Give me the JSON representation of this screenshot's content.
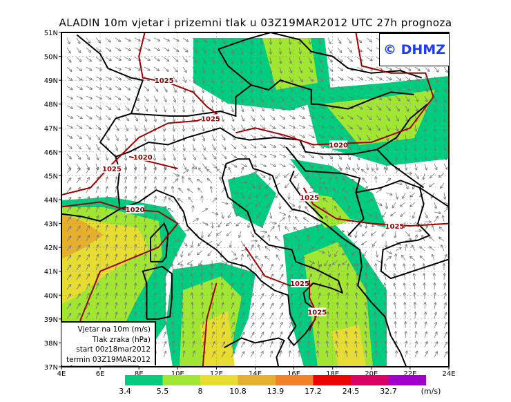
{
  "title": "ALADIN 10m vjetar i prizemni tlak u 03Z19MAR2012 UTC 27h prognoza",
  "copyright": "© DHMZ",
  "info_box": {
    "line1": "Vjetar na 10m (m/s)",
    "line2": "Tlak zraka (hPa)",
    "line3": "start 00z18mar2012",
    "line4": "termin 03Z19MAR2012"
  },
  "axes": {
    "lat_labels": [
      "51N",
      "50N",
      "49N",
      "48N",
      "47N",
      "46N",
      "45N",
      "44N",
      "43N",
      "42N",
      "41N",
      "40N",
      "39N",
      "38N",
      "37N"
    ],
    "lon_labels": [
      "4E",
      "6E",
      "8E",
      "10E",
      "12E",
      "14E",
      "16E",
      "18E",
      "20E",
      "22E",
      "24E"
    ],
    "lat_range": [
      37,
      51
    ],
    "lon_range": [
      4,
      24
    ]
  },
  "legend": {
    "unit": "(m/s)",
    "thresholds": [
      "3.4",
      "5.5",
      "8",
      "10.8",
      "13.9",
      "17.2",
      "24.5",
      "32.7"
    ],
    "colors": [
      "#00cc80",
      "#a0e632",
      "#e6dc32",
      "#e6af2d",
      "#f08228",
      "#f00000",
      "#dc0064",
      "#a000c8"
    ]
  },
  "isobars": [
    {
      "label": "1025",
      "lon": 9.3,
      "lat": 49.0
    },
    {
      "label": "1025",
      "lon": 11.7,
      "lat": 47.4
    },
    {
      "label": "1025",
      "lon": 6.6,
      "lat": 45.3
    },
    {
      "label": "1020",
      "lon": 8.2,
      "lat": 45.8
    },
    {
      "label": "1020",
      "lon": 7.8,
      "lat": 43.6
    },
    {
      "label": "1020",
      "lon": 18.3,
      "lat": 46.3
    },
    {
      "label": "1025",
      "lon": 16.8,
      "lat": 44.1
    },
    {
      "label": "1025",
      "lon": 21.2,
      "lat": 42.9
    },
    {
      "label": "1025",
      "lon": 16.3,
      "lat": 40.5
    },
    {
      "label": "1025",
      "lon": 17.2,
      "lat": 39.3
    }
  ]
}
